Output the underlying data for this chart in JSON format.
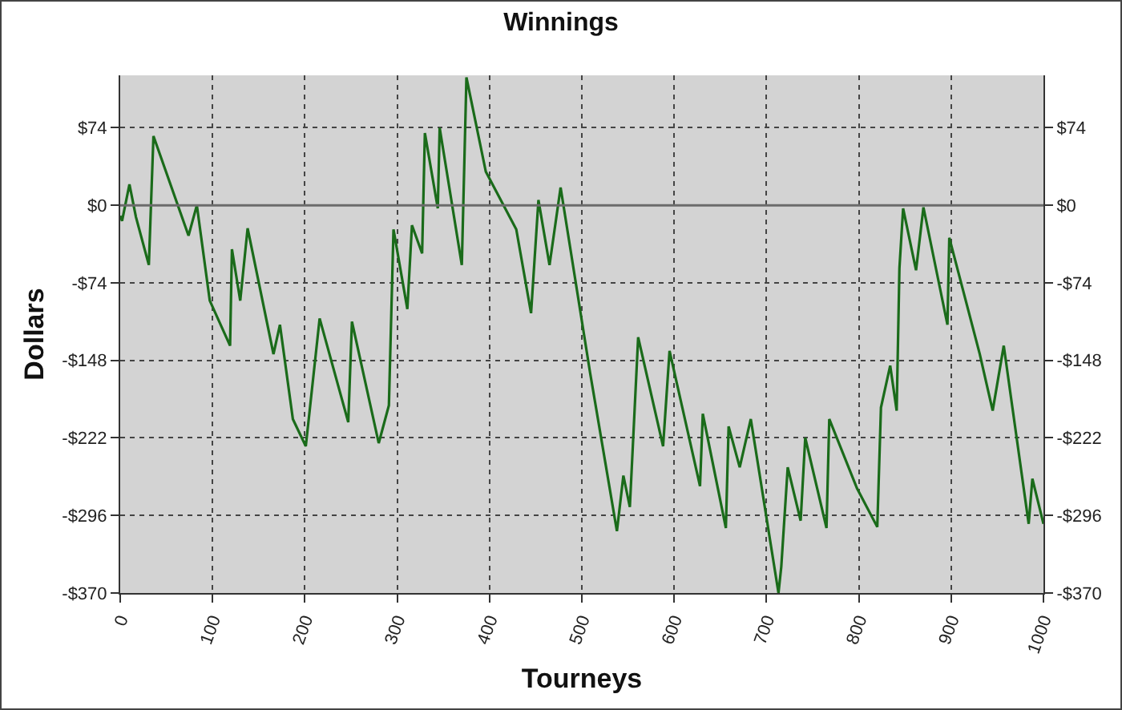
{
  "chart_data": {
    "type": "line",
    "title": "Winnings",
    "xlabel": "Tourneys",
    "ylabel": "Dollars",
    "x": [
      0,
      2,
      10,
      17,
      31,
      36,
      74,
      83,
      97,
      119,
      121,
      130,
      138,
      166,
      173,
      187,
      201,
      216,
      247,
      251,
      280,
      291,
      296,
      311,
      316,
      327,
      330,
      344,
      346,
      370,
      375,
      396,
      429,
      445,
      453,
      465,
      477,
      509,
      538,
      545,
      552,
      561,
      588,
      595,
      628,
      631,
      656,
      659,
      671,
      683,
      713,
      716,
      723,
      737,
      742,
      765,
      768,
      798,
      820,
      824,
      834,
      841,
      844,
      848,
      862,
      870,
      896,
      898,
      931,
      945,
      957,
      984,
      988,
      1000
    ],
    "series": [
      {
        "color": "#1a6b1a",
        "values": [
          -10,
          -15,
          20,
          -11,
          -57,
          66,
          -29,
          0,
          -91,
          -134,
          -42,
          -91,
          -22,
          -142,
          -114,
          -204,
          -230,
          -108,
          -207,
          -111,
          -227,
          -191,
          -23,
          -99,
          -19,
          -46,
          69,
          -3,
          74,
          -57,
          122,
          32,
          -23,
          -103,
          5,
          -57,
          17,
          -160,
          -311,
          -258,
          -288,
          -126,
          -230,
          -139,
          -268,
          -199,
          -308,
          -211,
          -250,
          -204,
          -370,
          -345,
          -250,
          -301,
          -222,
          -308,
          -204,
          -270,
          -307,
          -193,
          -153,
          -196,
          -60,
          -3,
          -62,
          -2,
          -114,
          -31,
          -142,
          -196,
          -134,
          -304,
          -261,
          -304
        ]
      }
    ],
    "xlim": [
      0,
      1000
    ],
    "xticks": [
      0,
      100,
      200,
      300,
      400,
      500,
      600,
      700,
      800,
      900,
      1000
    ],
    "ylim": [
      -370,
      124
    ],
    "yticks": [
      {
        "value": -370,
        "label": "-$370"
      },
      {
        "value": -296,
        "label": "-$296"
      },
      {
        "value": -222,
        "label": "-$222"
      },
      {
        "value": -148,
        "label": "-$148"
      },
      {
        "value": -74,
        "label": "-$74"
      },
      {
        "value": 0,
        "label": "$0"
      },
      {
        "value": 74,
        "label": "$74"
      }
    ],
    "y2lim": [
      -370,
      124
    ],
    "y2ticks": [
      {
        "value": -370,
        "label": "-$370"
      },
      {
        "value": -296,
        "label": "-$296"
      },
      {
        "value": -222,
        "label": "-$222"
      },
      {
        "value": -148,
        "label": "-$148"
      },
      {
        "value": -74,
        "label": "-$74"
      },
      {
        "value": 0,
        "label": "$0"
      },
      {
        "value": 74,
        "label": "$74"
      }
    ],
    "ref_lines": [
      {
        "axis": "y",
        "value": 0,
        "color": "#6b6b6b",
        "line_style": "solid"
      }
    ],
    "grid": true
  }
}
